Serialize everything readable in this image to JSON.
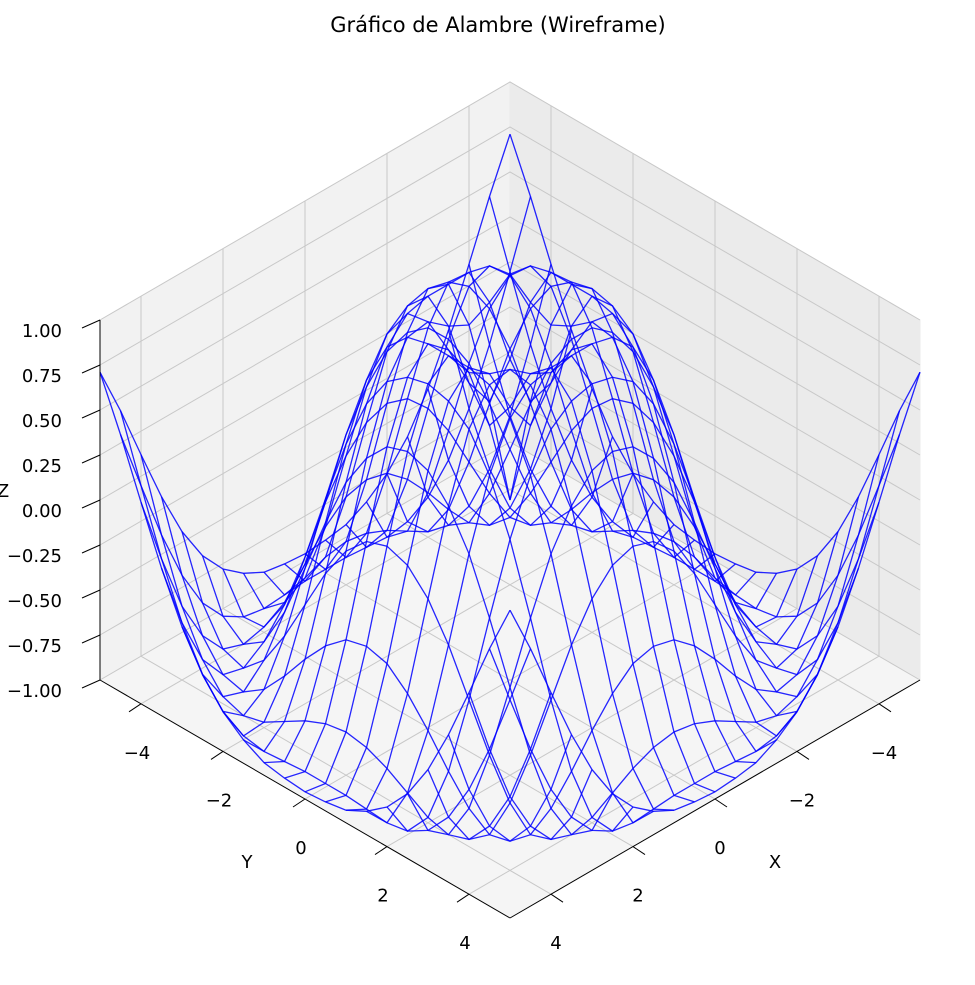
{
  "chart_data": {
    "type": "wireframe",
    "title": "Gráfico de Alambre (Wireframe)",
    "xlabel": "X",
    "ylabel": "Y",
    "zlabel": "Z",
    "color": "#0000ff",
    "x": [
      -5,
      -4.5,
      -4,
      -3.5,
      -3,
      -2.5,
      -2,
      -1.5,
      -1,
      -0.5,
      0,
      0.5,
      1,
      1.5,
      2,
      2.5,
      3,
      3.5,
      4,
      4.5,
      5
    ],
    "y": [
      -5,
      -4.5,
      -4,
      -3.5,
      -3,
      -2.5,
      -2,
      -1.5,
      -1,
      -0.5,
      0,
      0.5,
      1,
      1.5,
      2,
      2.5,
      3,
      3.5,
      4,
      4.5,
      5
    ],
    "z": [
      [
        0.71,
        0.43,
        0.12,
        -0.18,
        -0.44,
        -0.64,
        -0.78,
        -0.87,
        -0.93,
        -0.95,
        -0.96,
        -0.95,
        -0.93,
        -0.87,
        -0.78,
        -0.64,
        -0.44,
        -0.18,
        0.12,
        0.43,
        0.71
      ],
      [
        0.43,
        0.08,
        -0.26,
        -0.55,
        -0.77,
        -0.91,
        -0.98,
        -1,
        -0.99,
        -0.98,
        -0.98,
        -0.98,
        -0.99,
        -1,
        -0.98,
        -0.91,
        -0.77,
        -0.55,
        -0.26,
        0.08,
        0.43
      ],
      [
        0.12,
        -0.26,
        -0.59,
        -0.82,
        -0.96,
        -1,
        -0.97,
        -0.9,
        -0.83,
        -0.78,
        -0.76,
        -0.78,
        -0.83,
        -0.9,
        -0.97,
        -1,
        -0.96,
        -0.82,
        -0.59,
        -0.26,
        0.12
      ],
      [
        -0.18,
        -0.55,
        -0.82,
        -0.97,
        -1,
        -0.92,
        -0.78,
        -0.62,
        -0.48,
        -0.38,
        -0.35,
        -0.38,
        -0.48,
        -0.62,
        -0.78,
        -0.92,
        -1,
        -0.97,
        -0.82,
        -0.55,
        -0.18
      ],
      [
        -0.44,
        -0.77,
        -0.96,
        -1,
        -0.89,
        -0.69,
        -0.45,
        -0.21,
        -0.02,
        0.1,
        0.14,
        0.1,
        -0.02,
        -0.21,
        -0.45,
        -0.69,
        -0.89,
        -1,
        -0.96,
        -0.77,
        -0.44
      ],
      [
        -0.64,
        -0.91,
        -1,
        -0.92,
        -0.69,
        -0.38,
        -0.06,
        0.23,
        0.43,
        0.56,
        0.6,
        0.56,
        0.43,
        0.23,
        -0.06,
        -0.38,
        -0.69,
        -0.92,
        -1,
        -0.91,
        -0.64
      ],
      [
        -0.78,
        -0.98,
        -0.97,
        -0.78,
        -0.45,
        -0.06,
        0.31,
        0.6,
        0.79,
        0.88,
        0.91,
        0.88,
        0.79,
        0.6,
        0.31,
        -0.06,
        -0.45,
        -0.78,
        -0.97,
        -0.98,
        -0.78
      ],
      [
        -0.87,
        -1,
        -0.9,
        -0.62,
        -0.21,
        0.23,
        0.6,
        0.85,
        0.97,
        1,
        1,
        1,
        0.97,
        0.85,
        0.6,
        0.23,
        -0.21,
        -0.62,
        -0.9,
        -1,
        -0.87
      ],
      [
        -0.93,
        -0.99,
        -0.83,
        -0.48,
        -0.02,
        0.43,
        0.79,
        0.97,
        0.99,
        0.9,
        0.84,
        0.9,
        0.99,
        0.97,
        0.79,
        0.43,
        -0.02,
        -0.48,
        -0.83,
        -0.99,
        -0.93
      ],
      [
        -0.95,
        -0.98,
        -0.78,
        -0.38,
        0.1,
        0.56,
        0.88,
        1,
        0.9,
        0.65,
        0.48,
        0.65,
        0.9,
        1,
        0.88,
        0.56,
        0.1,
        -0.38,
        -0.78,
        -0.98,
        -0.95
      ],
      [
        -0.96,
        -0.98,
        -0.76,
        -0.35,
        0.14,
        0.6,
        0.91,
        1,
        0.84,
        0.48,
        0,
        0.48,
        0.84,
        1,
        0.91,
        0.6,
        0.14,
        -0.35,
        -0.76,
        -0.98,
        -0.96
      ],
      [
        -0.95,
        -0.98,
        -0.78,
        -0.38,
        0.1,
        0.56,
        0.88,
        1,
        0.9,
        0.65,
        0.48,
        0.65,
        0.9,
        1,
        0.88,
        0.56,
        0.1,
        -0.38,
        -0.78,
        -0.98,
        -0.95
      ],
      [
        -0.93,
        -0.99,
        -0.83,
        -0.48,
        -0.02,
        0.43,
        0.79,
        0.97,
        0.99,
        0.9,
        0.84,
        0.9,
        0.99,
        0.97,
        0.79,
        0.43,
        -0.02,
        -0.48,
        -0.83,
        -0.99,
        -0.93
      ],
      [
        -0.87,
        -1,
        -0.9,
        -0.62,
        -0.21,
        0.23,
        0.6,
        0.85,
        0.97,
        1,
        1,
        1,
        0.97,
        0.85,
        0.6,
        0.23,
        -0.21,
        -0.62,
        -0.9,
        -1,
        -0.87
      ],
      [
        -0.78,
        -0.98,
        -0.97,
        -0.78,
        -0.45,
        -0.06,
        0.31,
        0.6,
        0.79,
        0.88,
        0.91,
        0.88,
        0.79,
        0.6,
        0.31,
        -0.06,
        -0.45,
        -0.78,
        -0.97,
        -0.98,
        -0.78
      ],
      [
        -0.64,
        -0.91,
        -1,
        -0.92,
        -0.69,
        -0.38,
        -0.06,
        0.23,
        0.43,
        0.56,
        0.6,
        0.56,
        0.43,
        0.23,
        -0.06,
        -0.38,
        -0.69,
        -0.92,
        -1,
        -0.91,
        -0.64
      ],
      [
        -0.44,
        -0.77,
        -0.96,
        -1,
        -0.89,
        -0.69,
        -0.45,
        -0.21,
        -0.02,
        0.1,
        0.14,
        0.1,
        -0.02,
        -0.21,
        -0.45,
        -0.69,
        -0.89,
        -1,
        -0.96,
        -0.77,
        -0.44
      ],
      [
        -0.18,
        -0.55,
        -0.82,
        -0.97,
        -1,
        -0.92,
        -0.78,
        -0.62,
        -0.48,
        -0.38,
        -0.35,
        -0.38,
        -0.48,
        -0.62,
        -0.78,
        -0.92,
        -1,
        -0.97,
        -0.82,
        -0.55,
        -0.18
      ],
      [
        0.12,
        -0.26,
        -0.59,
        -0.82,
        -0.96,
        -1,
        -0.97,
        -0.9,
        -0.83,
        -0.78,
        -0.76,
        -0.78,
        -0.83,
        -0.9,
        -0.97,
        -1,
        -0.96,
        -0.82,
        -0.59,
        -0.26,
        0.12
      ],
      [
        0.43,
        0.08,
        -0.26,
        -0.55,
        -0.77,
        -0.91,
        -0.98,
        -1,
        -0.99,
        -0.98,
        -0.98,
        -0.98,
        -0.99,
        -1,
        -0.98,
        -0.91,
        -0.77,
        -0.55,
        -0.26,
        0.08,
        0.43
      ],
      [
        0.71,
        0.43,
        0.12,
        -0.18,
        -0.44,
        -0.64,
        -0.78,
        -0.87,
        -0.93,
        -0.95,
        -0.96,
        -0.95,
        -0.93,
        -0.87,
        -0.78,
        -0.64,
        -0.44,
        -0.18,
        0.12,
        0.43,
        0.71
      ]
    ],
    "xlim": [
      -5,
      5
    ],
    "ylim": [
      -5,
      5
    ],
    "zlim": [
      -1,
      1
    ],
    "xticks": [
      {
        "value": -4,
        "label": "−4"
      },
      {
        "value": -2,
        "label": "−2"
      },
      0,
      2,
      4
    ],
    "yticks": [
      {
        "value": -4,
        "label": "−4"
      },
      {
        "value": -2,
        "label": "−2"
      },
      0,
      2,
      4
    ],
    "zticks": [
      {
        "value": -1,
        "label": "−1.00"
      },
      {
        "value": -0.75,
        "label": "−0.75"
      },
      {
        "value": -0.5,
        "label": "−0.50"
      },
      {
        "value": -0.25,
        "label": "−0.25"
      },
      {
        "value": 0,
        "label": "0.00"
      },
      {
        "value": 0.25,
        "label": "0.25"
      },
      {
        "value": 0.5,
        "label": "0.50"
      },
      {
        "value": 0.75,
        "label": "0.75"
      },
      {
        "value": 1,
        "label": "1.00"
      }
    ],
    "grid": true
  }
}
